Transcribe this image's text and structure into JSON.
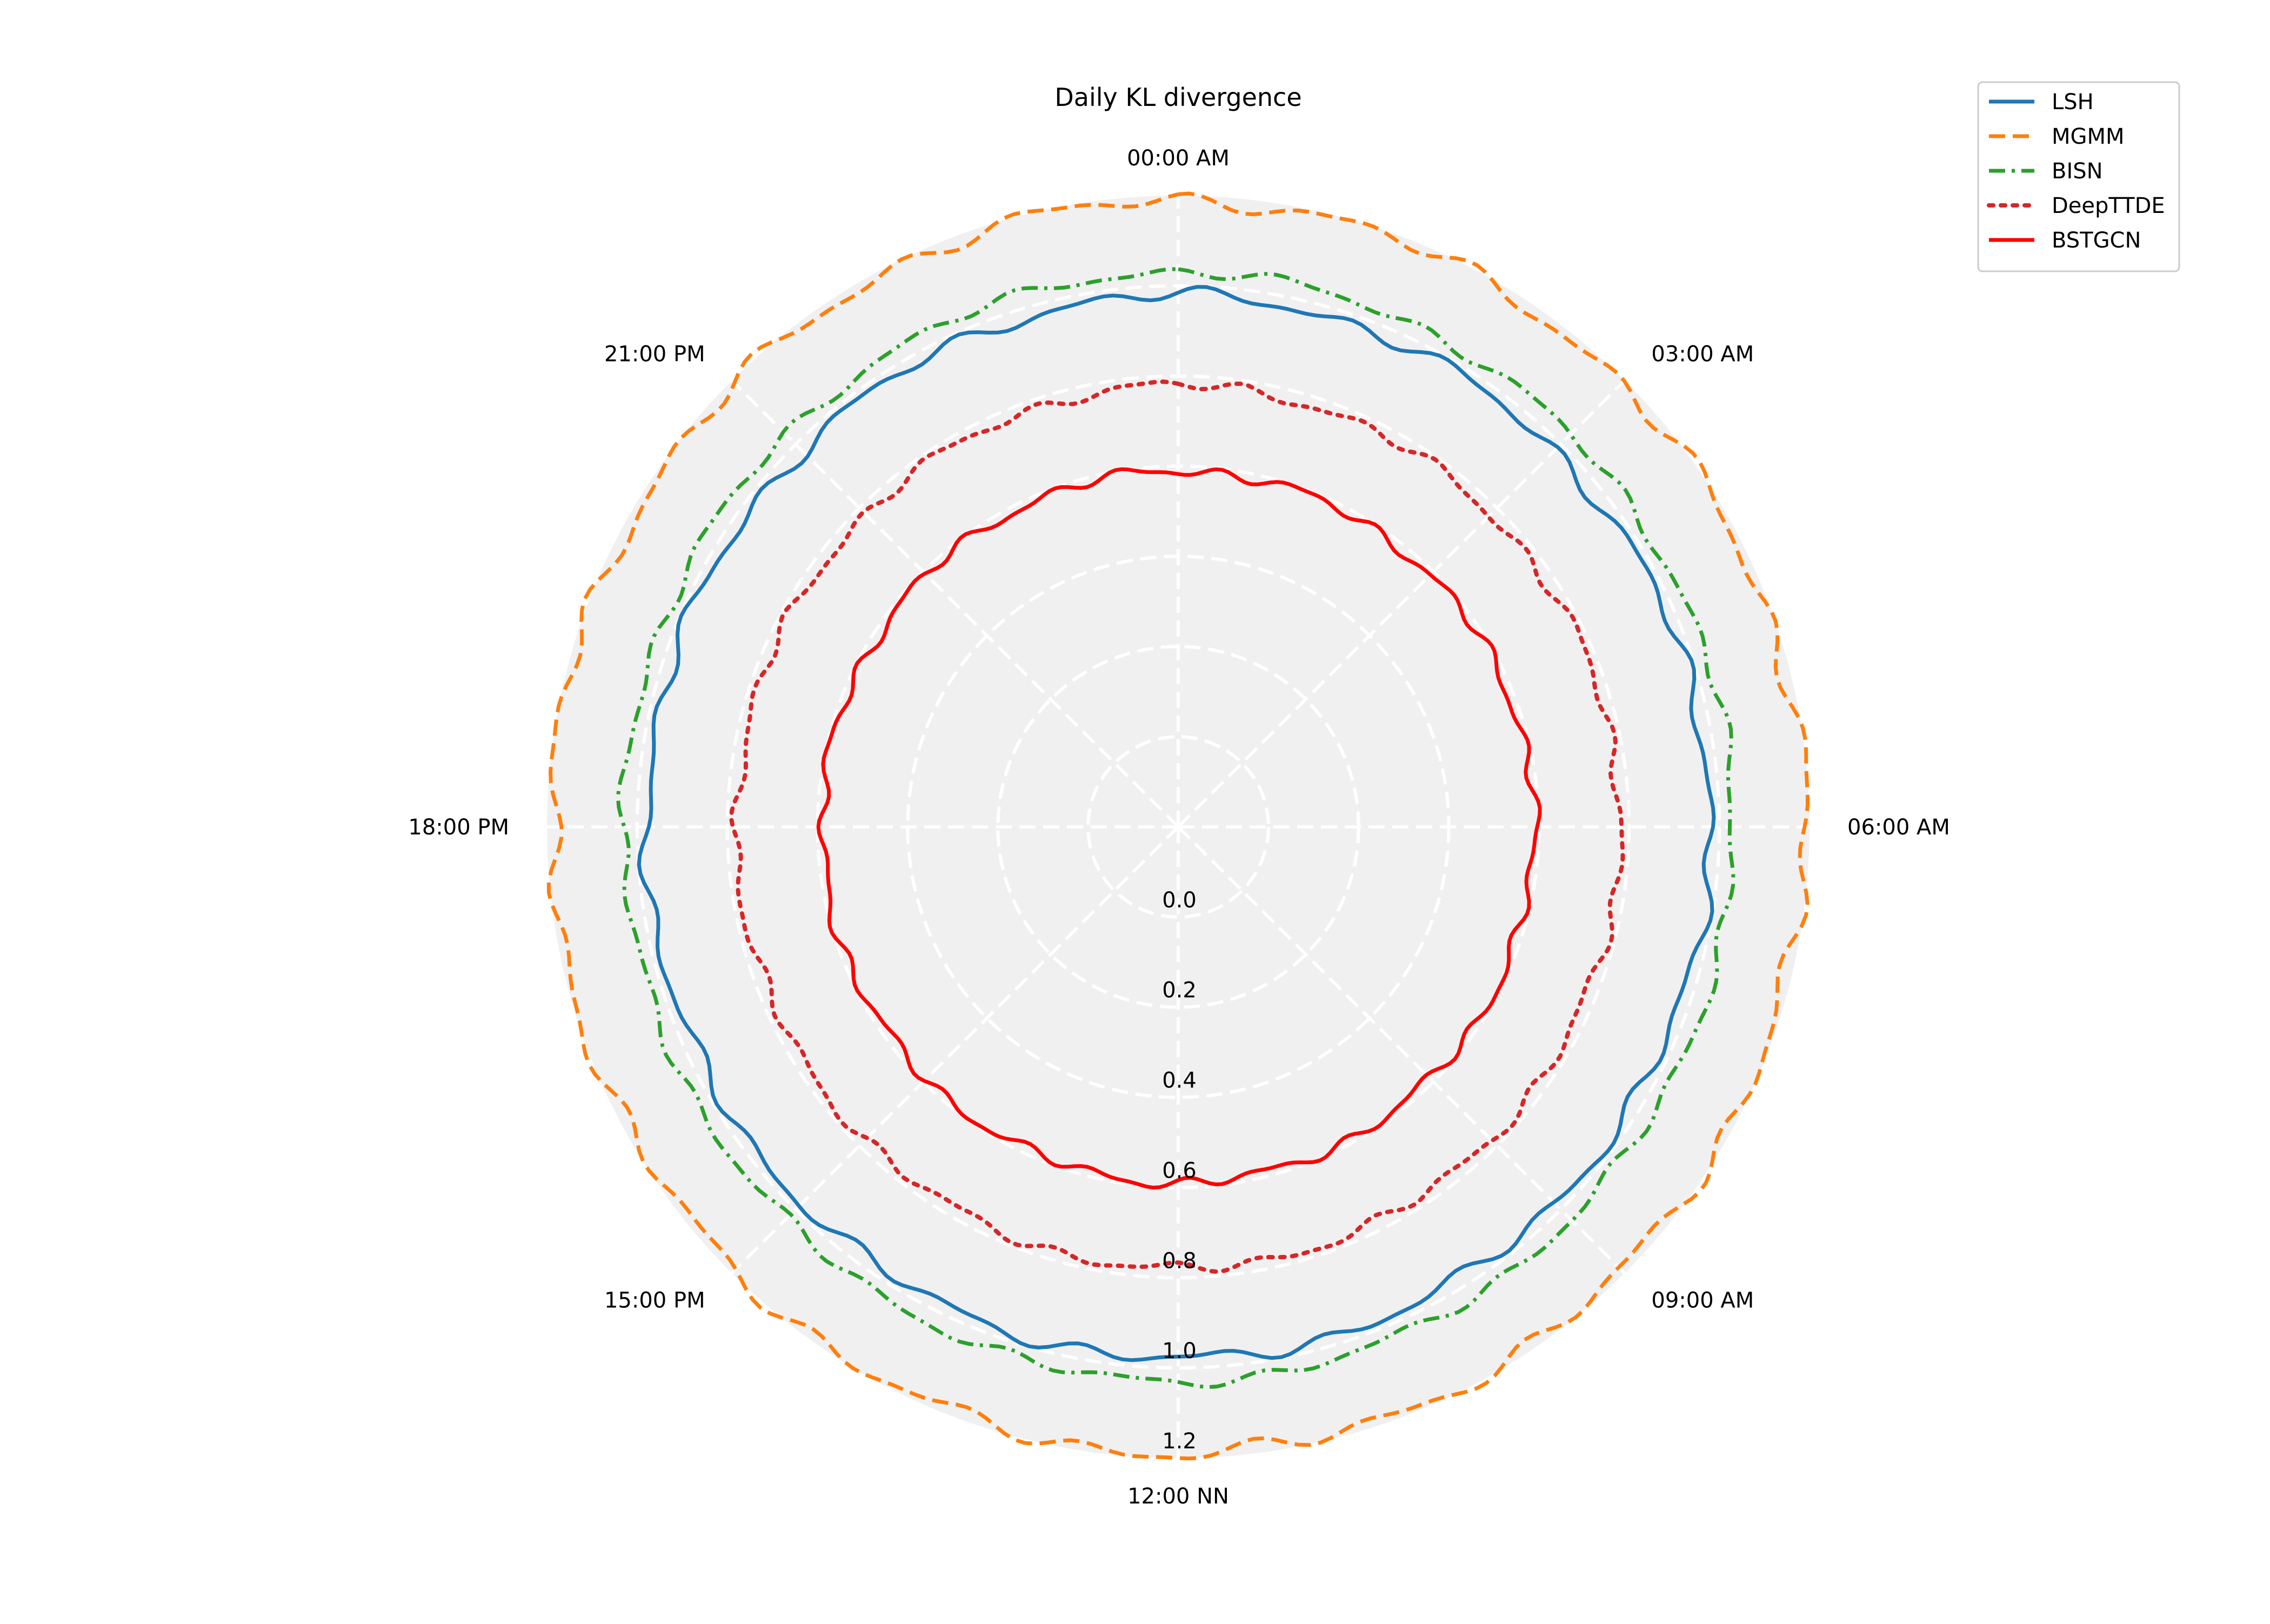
{
  "chart_data": {
    "type": "line",
    "projection": "polar",
    "title": "Daily KL divergence",
    "direction": "clockwise",
    "zero_location": "top",
    "angle_ticks": [
      {
        "angle_deg": 0,
        "label": "00:00 AM"
      },
      {
        "angle_deg": 45,
        "label": "03:00 AM"
      },
      {
        "angle_deg": 90,
        "label": "06:00 AM"
      },
      {
        "angle_deg": 135,
        "label": "09:00 AM"
      },
      {
        "angle_deg": 180,
        "label": "12:00 NN"
      },
      {
        "angle_deg": 225,
        "label": "15:00 PM"
      },
      {
        "angle_deg": 270,
        "label": "18:00 PM"
      },
      {
        "angle_deg": 315,
        "label": "21:00 PM"
      }
    ],
    "radial_ticks": [
      0.0,
      0.2,
      0.4,
      0.6,
      0.8,
      1.0,
      1.2
    ],
    "radial_tick_labels": [
      "0.0",
      "0.2",
      "0.4",
      "0.6",
      "0.8",
      "1.0",
      "1.2"
    ],
    "rlim": [
      -0.2,
      1.2
    ],
    "grid": true,
    "legend_position": "top-right",
    "series": [
      {
        "name": "LSH",
        "color": "#1f77b4",
        "style": "solid",
        "mean_value": 0.98,
        "ripple": 0.01
      },
      {
        "name": "MGMM",
        "color": "#ff7f0e",
        "style": "dashed",
        "mean_value": 1.19,
        "ripple": 0.012
      },
      {
        "name": "BISN",
        "color": "#2ca02c",
        "style": "dashdot",
        "mean_value": 1.03,
        "ripple": 0.008
      },
      {
        "name": "DeepTTDE",
        "color": "#d62728",
        "style": "dotted",
        "mean_value": 0.78,
        "ripple": 0.008
      },
      {
        "name": "BSTGCN",
        "color": "#ff0000",
        "style": "solid",
        "mean_value": 0.59,
        "ripple": 0.008
      }
    ]
  }
}
